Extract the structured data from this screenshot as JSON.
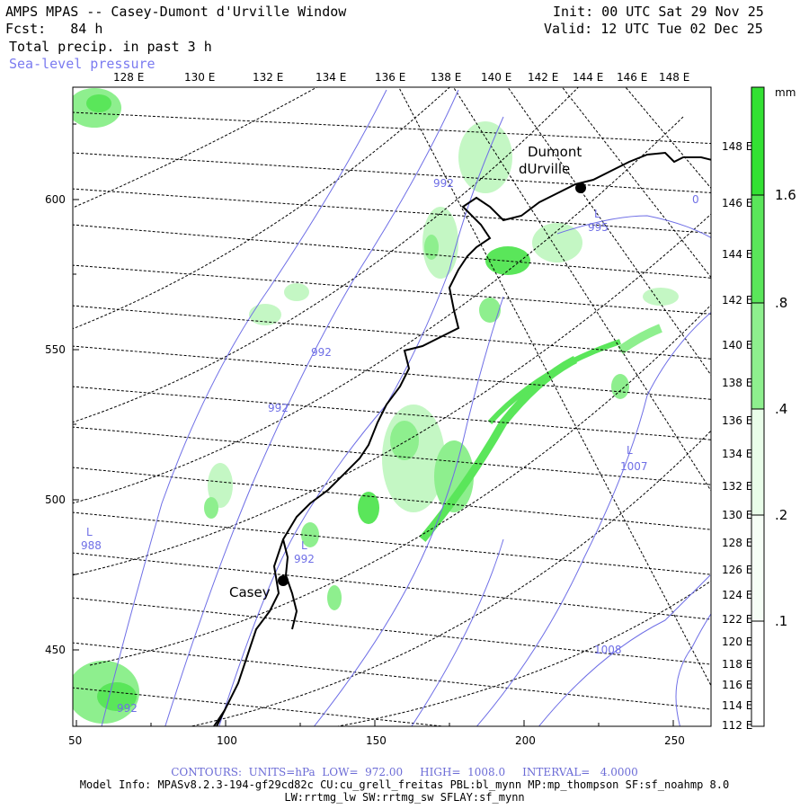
{
  "header": {
    "title": "AMPS MPAS -- Casey-Dumont d'Urville Window",
    "fcst": "Fcst:   84 h",
    "field": "Total precip. in past 3 h",
    "overlay": "Sea-level pressure",
    "init": "Init: 00 UTC Sat 29 Nov 25",
    "valid": "Valid: 12 UTC Tue 02 Dec 25"
  },
  "map": {
    "top_lon_labels": [
      "128 E",
      "130 E",
      "132 E",
      "134 E",
      "136 E",
      "138 E",
      "140 E",
      "142 E",
      "144 E",
      "146 E",
      "148 E"
    ],
    "right_lat_labels": [
      "148 E",
      "146 E",
      "144 E",
      "142 E",
      "140 E",
      "138 E",
      "136 E",
      "134 E",
      "132 E",
      "130 E",
      "128 E",
      "126 E",
      "124 E",
      "122 E",
      "120 E",
      "118 E",
      "116 E",
      "114 E",
      "112 E"
    ],
    "left_axis_labels": [
      "600",
      "550",
      "500",
      "450"
    ],
    "bottom_axis_labels": [
      "50",
      "100",
      "150",
      "200",
      "250"
    ],
    "stations": [
      {
        "name": "Casey"
      },
      {
        "name_line1": "Dumont",
        "name_line2": "dUrville"
      }
    ],
    "isobar_labels": [
      "992",
      "992",
      "992",
      "992",
      "995",
      "1007",
      "1008",
      "988",
      "992",
      "0"
    ],
    "low_markers": [
      "L",
      "L",
      "L",
      "L"
    ]
  },
  "colorbar": {
    "unit": "mm",
    "ticks": [
      "1.6",
      ".8",
      ".4",
      ".2",
      ".1"
    ],
    "colors": [
      "#33e133",
      "#5ae65a",
      "#8eef8e",
      "#c4f7c4",
      "#e9fde9"
    ]
  },
  "footer": {
    "contours": "CONTOURS:  UNITS=hPa  LOW=  972.00     HIGH=  1008.0     INTERVAL=   4.0000",
    "model_info": "Model Info: MPASv8.2.3-194-gf29cd82c CU:cu_grell_freitas PBL:bl_mynn MP:mp_thompson SF:sf_noahmp 8.0",
    "model_info2": "LW:rrtmg_lw SW:rrtmg_sw SFLAY:sf_mynn"
  }
}
